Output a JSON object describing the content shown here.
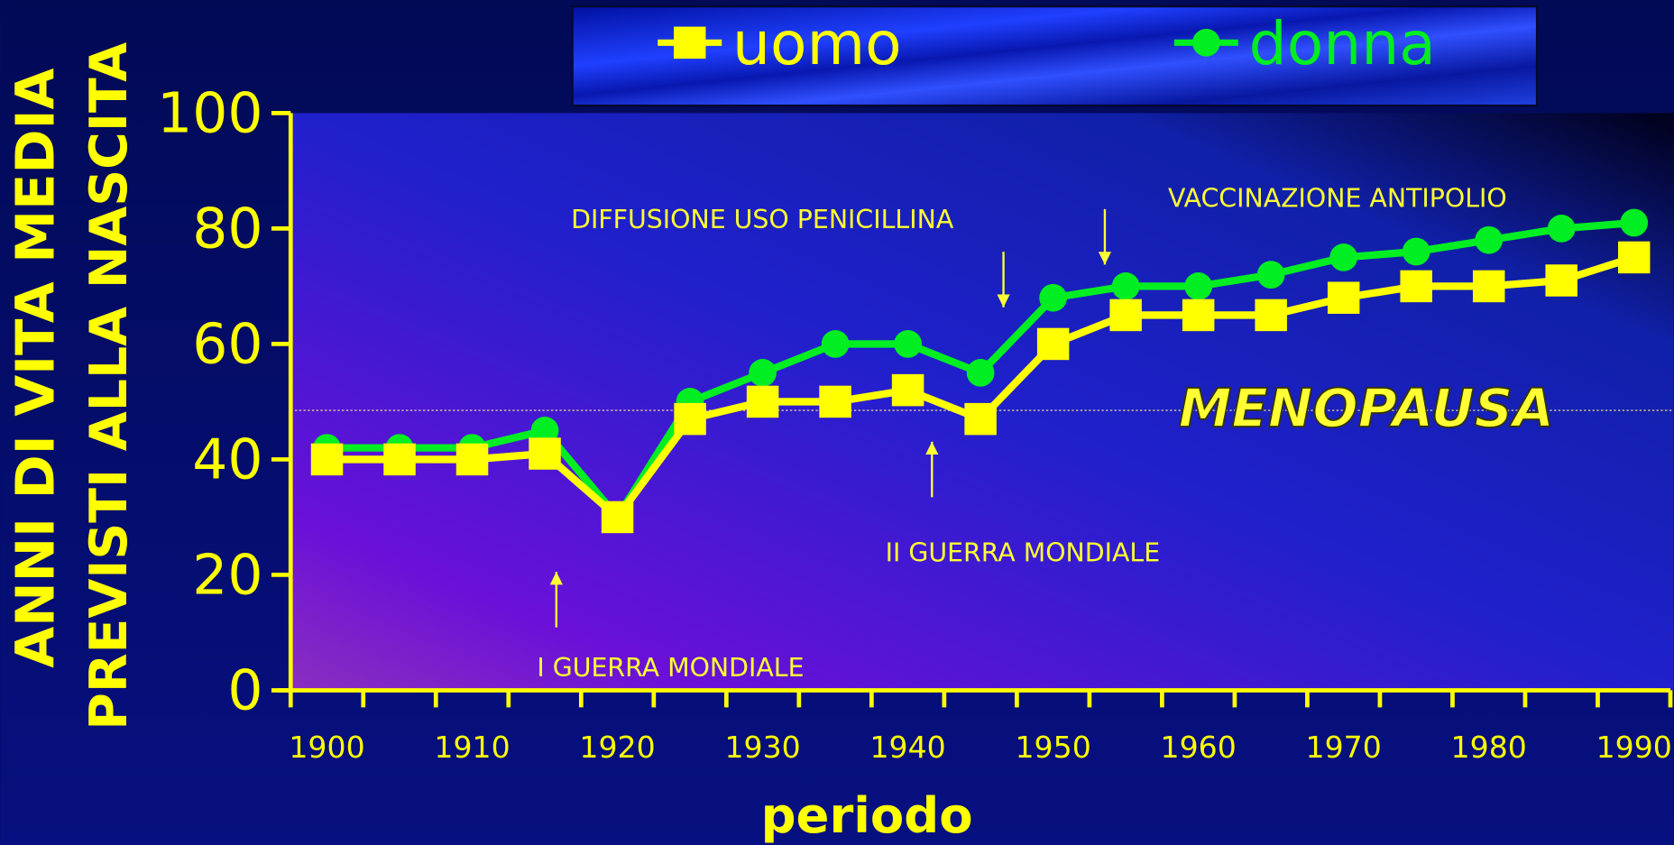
{
  "chart_data": {
    "type": "line",
    "y_title_lines": [
      "ANNI DI VITA MEDIA",
      "PREVISTI ALLA NASCITA"
    ],
    "x_title": "periodo",
    "categories": [
      "1900",
      null,
      "1910",
      null,
      "1920",
      null,
      "1930",
      null,
      "1940",
      null,
      "1950",
      null,
      "1960",
      null,
      "1970",
      null,
      "1980",
      null,
      "1990"
    ],
    "series": [
      {
        "name": "uomo",
        "color": "#ffff00",
        "marker": "square",
        "values": [
          40,
          40,
          40,
          41,
          30,
          47,
          50,
          50,
          52,
          47,
          60,
          65,
          65,
          65,
          68,
          70,
          70,
          71,
          75
        ]
      },
      {
        "name": "donna",
        "color": "#00ee22",
        "marker": "circle",
        "values": [
          42,
          42,
          42,
          45,
          30,
          50,
          55,
          60,
          60,
          55,
          68,
          70,
          70,
          72,
          75,
          76,
          78,
          80,
          81
        ]
      }
    ],
    "ylim": [
      0,
      100
    ],
    "yticks": [
      0,
      20,
      40,
      60,
      80,
      100
    ],
    "reference_line": {
      "label": "MENOPAUSA",
      "value": 48.5
    },
    "annotations": [
      "DIFFUSIONE USO PENICILLINA",
      "VACCINAZIONE ANTIPOLIO",
      "II GUERRA MONDIALE",
      "I GUERRA MONDIALE"
    ]
  }
}
